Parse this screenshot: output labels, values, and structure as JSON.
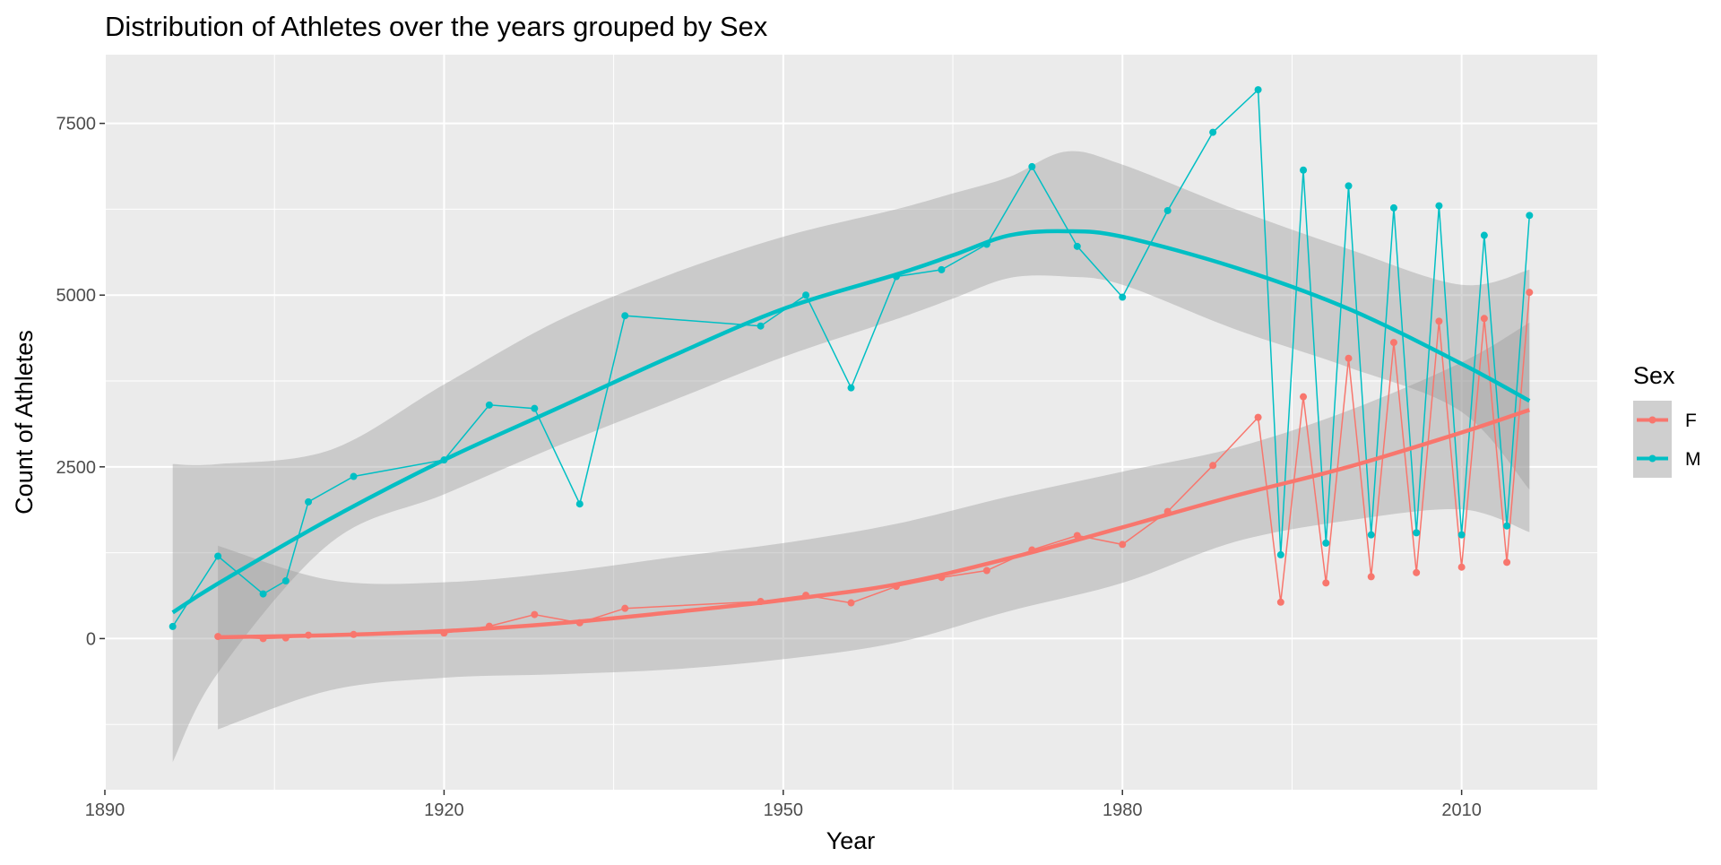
{
  "chart_data": {
    "type": "line",
    "title": "Distribution of Athletes over the years grouped by Sex",
    "xlabel": "Year",
    "ylabel": "Count of Athletes",
    "xlim": [
      1890,
      2022
    ],
    "ylim": [
      -2200,
      8500
    ],
    "x_ticks": [
      1890,
      1920,
      1950,
      1980,
      2010
    ],
    "y_ticks": [
      0,
      2500,
      5000,
      7500
    ],
    "grid": true,
    "legend": {
      "title": "Sex",
      "position": "right"
    },
    "series": [
      {
        "name": "F",
        "color": "#F8766D",
        "x": [
          1900,
          1904,
          1906,
          1908,
          1912,
          1920,
          1924,
          1928,
          1932,
          1936,
          1948,
          1952,
          1956,
          1960,
          1964,
          1968,
          1972,
          1976,
          1980,
          1984,
          1988,
          1992,
          1994,
          1996,
          1998,
          2000,
          2002,
          2004,
          2006,
          2008,
          2010,
          2012,
          2014,
          2016
        ],
        "values": [
          30,
          0,
          10,
          50,
          60,
          80,
          180,
          350,
          230,
          440,
          540,
          630,
          520,
          760,
          890,
          990,
          1290,
          1500,
          1370,
          1850,
          2520,
          3220,
          530,
          3520,
          810,
          4080,
          900,
          4310,
          960,
          4620,
          1040,
          4660,
          1110,
          5040
        ],
        "smooth_x": [
          1900,
          1910,
          1920,
          1930,
          1940,
          1950,
          1960,
          1970,
          1980,
          1990,
          2000,
          2010,
          2016
        ],
        "smooth_y": [
          20,
          50,
          110,
          220,
          380,
          560,
          790,
          1170,
          1620,
          2080,
          2500,
          3000,
          3330
        ],
        "ci_low": [
          -1320,
          -750,
          -570,
          -520,
          -450,
          -300,
          -60,
          400,
          810,
          1410,
          1720,
          1880,
          1550
        ],
        "ci_high": [
          1350,
          850,
          820,
          960,
          1180,
          1390,
          1670,
          2070,
          2430,
          2780,
          3320,
          4020,
          4600
        ]
      },
      {
        "name": "M",
        "color": "#00BFC4",
        "x": [
          1896,
          1900,
          1904,
          1906,
          1908,
          1912,
          1920,
          1924,
          1928,
          1932,
          1936,
          1948,
          1952,
          1956,
          1960,
          1964,
          1968,
          1972,
          1976,
          1980,
          1984,
          1988,
          1992,
          1994,
          1996,
          1998,
          2000,
          2002,
          2004,
          2006,
          2008,
          2010,
          2012,
          2014,
          2016
        ],
        "values": [
          176,
          1200,
          650,
          840,
          1990,
          2360,
          2600,
          3400,
          3350,
          1960,
          4700,
          4550,
          5000,
          3650,
          5270,
          5370,
          5740,
          6870,
          5710,
          4970,
          6230,
          7370,
          7990,
          1220,
          6820,
          1390,
          6590,
          1510,
          6270,
          1540,
          6300,
          1510,
          5870,
          1640,
          6160
        ],
        "smooth_x": [
          1896,
          1900,
          1910,
          1920,
          1930,
          1940,
          1950,
          1960,
          1965,
          1970,
          1975,
          1980,
          1990,
          2000,
          2010,
          2016
        ],
        "smooth_y": [
          380,
          800,
          1750,
          2600,
          3350,
          4100,
          4800,
          5300,
          5580,
          5870,
          5930,
          5850,
          5400,
          4800,
          4000,
          3460
        ],
        "ci_low": [
          -1800,
          -500,
          1400,
          2100,
          2800,
          3450,
          4100,
          4650,
          4950,
          5250,
          5270,
          5150,
          4500,
          3950,
          3300,
          2170
        ],
        "ci_high": [
          2540,
          2540,
          2750,
          3700,
          4620,
          5300,
          5850,
          6250,
          6480,
          6720,
          7090,
          6900,
          6250,
          5670,
          5150,
          5370
        ]
      }
    ]
  }
}
